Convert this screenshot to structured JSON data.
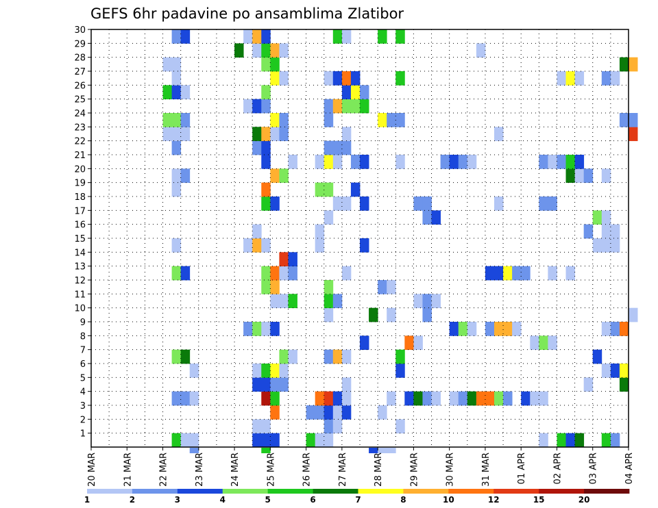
{
  "chart_data": {
    "type": "heatmap",
    "title": "GEFS 6hr padavine po ansamblima Zlatibor",
    "xlabel": "",
    "ylabel": "",
    "x_ticks": [
      "20 MAR",
      "21 MAR",
      "22 MAR",
      "23 MAR",
      "24 MAR",
      "25 MAR",
      "26 MAR",
      "27 MAR",
      "28 MAR",
      "29 MAR",
      "30 MAR",
      "31 MAR",
      "01 APR",
      "02 APR",
      "03 APR",
      "04 APR"
    ],
    "y_ticks": [
      "1",
      "2",
      "3",
      "4",
      "5",
      "6",
      "7",
      "8",
      "9",
      "10",
      "11",
      "12",
      "13",
      "14",
      "15",
      "16",
      "17",
      "18",
      "19",
      "20",
      "21",
      "22",
      "23",
      "24",
      "25",
      "26",
      "27",
      "28",
      "29",
      "30"
    ],
    "steps_per_day": 4,
    "x_range_steps": [
      0,
      60
    ],
    "ylim": [
      0,
      30
    ],
    "grid": true,
    "color_scale": {
      "boundaries": [
        "1",
        "2",
        "3",
        "4",
        "5",
        "6",
        "7",
        "8",
        "10",
        "12",
        "15",
        "20"
      ],
      "colors": [
        "#b3c6f5",
        "#6d94eb",
        "#1a47dc",
        "#7de85a",
        "#1ec81e",
        "#0a7a0a",
        "#ffff1e",
        "#ffb030",
        "#ff7410",
        "#e23a14",
        "#b0150a",
        "#6e0a0a"
      ]
    },
    "cells": [
      [
        1,
        9,
        4
      ],
      [
        1,
        10,
        0
      ],
      [
        1,
        11,
        0
      ],
      [
        1,
        18,
        2
      ],
      [
        1,
        19,
        2
      ],
      [
        1,
        20,
        2
      ],
      [
        1,
        24,
        4
      ],
      [
        1,
        25,
        0
      ],
      [
        1,
        26,
        0
      ],
      [
        1,
        50,
        0
      ],
      [
        1,
        52,
        4
      ],
      [
        1,
        53,
        2
      ],
      [
        1,
        54,
        5
      ],
      [
        1,
        57,
        4
      ],
      [
        1,
        58,
        1
      ],
      [
        2,
        18,
        0
      ],
      [
        2,
        19,
        0
      ],
      [
        2,
        26,
        1
      ],
      [
        2,
        27,
        0
      ],
      [
        2,
        34,
        0
      ],
      [
        3,
        20,
        8
      ],
      [
        3,
        24,
        1
      ],
      [
        3,
        25,
        1
      ],
      [
        3,
        26,
        2
      ],
      [
        3,
        27,
        0
      ],
      [
        3,
        28,
        2
      ],
      [
        3,
        32,
        0
      ],
      [
        4,
        9,
        1
      ],
      [
        4,
        10,
        1
      ],
      [
        4,
        11,
        0
      ],
      [
        4,
        19,
        10
      ],
      [
        4,
        20,
        4
      ],
      [
        4,
        25,
        8
      ],
      [
        4,
        26,
        9
      ],
      [
        4,
        27,
        2
      ],
      [
        4,
        28,
        0
      ],
      [
        4,
        33,
        0
      ],
      [
        4,
        35,
        2
      ],
      [
        4,
        36,
        5
      ],
      [
        4,
        37,
        1
      ],
      [
        4,
        38,
        0
      ],
      [
        4,
        40,
        0
      ],
      [
        4,
        41,
        1
      ],
      [
        4,
        42,
        5
      ],
      [
        4,
        43,
        8
      ],
      [
        4,
        44,
        8
      ],
      [
        4,
        45,
        3
      ],
      [
        4,
        46,
        1
      ],
      [
        4,
        48,
        2
      ],
      [
        4,
        49,
        0
      ],
      [
        4,
        50,
        0
      ],
      [
        5,
        18,
        2
      ],
      [
        5,
        19,
        2
      ],
      [
        5,
        20,
        1
      ],
      [
        5,
        21,
        1
      ],
      [
        5,
        28,
        0
      ],
      [
        5,
        55,
        0
      ],
      [
        5,
        59,
        5
      ],
      [
        6,
        11,
        0
      ],
      [
        6,
        18,
        0
      ],
      [
        6,
        19,
        4
      ],
      [
        6,
        20,
        6
      ],
      [
        6,
        21,
        0
      ],
      [
        6,
        34,
        2
      ],
      [
        6,
        57,
        0
      ],
      [
        6,
        58,
        2
      ],
      [
        6,
        59,
        6
      ],
      [
        7,
        9,
        3
      ],
      [
        7,
        10,
        5
      ],
      [
        7,
        21,
        3
      ],
      [
        7,
        22,
        0
      ],
      [
        7,
        26,
        1
      ],
      [
        7,
        27,
        7
      ],
      [
        7,
        28,
        0
      ],
      [
        7,
        34,
        4
      ],
      [
        7,
        56,
        2
      ],
      [
        8,
        30,
        2
      ],
      [
        8,
        35,
        8
      ],
      [
        8,
        36,
        0
      ],
      [
        8,
        49,
        0
      ],
      [
        8,
        50,
        3
      ],
      [
        8,
        51,
        0
      ],
      [
        9,
        17,
        1
      ],
      [
        9,
        18,
        3
      ],
      [
        9,
        19,
        0
      ],
      [
        9,
        20,
        2
      ],
      [
        9,
        40,
        2
      ],
      [
        9,
        41,
        3
      ],
      [
        9,
        42,
        0
      ],
      [
        9,
        44,
        1
      ],
      [
        9,
        45,
        7
      ],
      [
        9,
        46,
        7
      ],
      [
        9,
        47,
        0
      ],
      [
        9,
        57,
        0
      ],
      [
        9,
        58,
        1
      ],
      [
        9,
        59,
        8
      ],
      [
        10,
        26,
        0
      ],
      [
        10,
        31,
        5
      ],
      [
        10,
        33,
        0
      ],
      [
        10,
        37,
        1
      ],
      [
        10,
        60,
        0
      ],
      [
        11,
        20,
        0
      ],
      [
        11,
        21,
        0
      ],
      [
        11,
        22,
        4
      ],
      [
        11,
        26,
        4
      ],
      [
        11,
        27,
        1
      ],
      [
        11,
        36,
        0
      ],
      [
        11,
        37,
        1
      ],
      [
        11,
        38,
        0
      ],
      [
        12,
        19,
        3
      ],
      [
        12,
        20,
        7
      ],
      [
        12,
        26,
        3
      ],
      [
        12,
        32,
        1
      ],
      [
        12,
        33,
        0
      ],
      [
        13,
        9,
        3
      ],
      [
        13,
        10,
        2
      ],
      [
        13,
        19,
        3
      ],
      [
        13,
        20,
        8
      ],
      [
        13,
        21,
        0
      ],
      [
        13,
        22,
        1
      ],
      [
        13,
        28,
        0
      ],
      [
        13,
        44,
        2
      ],
      [
        13,
        45,
        2
      ],
      [
        13,
        46,
        6
      ],
      [
        13,
        47,
        1
      ],
      [
        13,
        48,
        1
      ],
      [
        13,
        51,
        0
      ],
      [
        13,
        53,
        0
      ],
      [
        14,
        21,
        9
      ],
      [
        14,
        22,
        2
      ],
      [
        15,
        9,
        0
      ],
      [
        15,
        17,
        0
      ],
      [
        15,
        18,
        7
      ],
      [
        15,
        19,
        0
      ],
      [
        15,
        25,
        0
      ],
      [
        15,
        30,
        2
      ],
      [
        15,
        56,
        0
      ],
      [
        15,
        57,
        0
      ],
      [
        15,
        58,
        0
      ],
      [
        16,
        18,
        0
      ],
      [
        16,
        25,
        0
      ],
      [
        16,
        55,
        1
      ],
      [
        16,
        57,
        0
      ],
      [
        16,
        58,
        0
      ],
      [
        17,
        26,
        0
      ],
      [
        17,
        37,
        1
      ],
      [
        17,
        38,
        2
      ],
      [
        17,
        56,
        3
      ],
      [
        17,
        57,
        0
      ],
      [
        18,
        19,
        4
      ],
      [
        18,
        20,
        2
      ],
      [
        18,
        27,
        0
      ],
      [
        18,
        28,
        0
      ],
      [
        18,
        30,
        2
      ],
      [
        18,
        36,
        1
      ],
      [
        18,
        37,
        1
      ],
      [
        18,
        45,
        0
      ],
      [
        18,
        50,
        1
      ],
      [
        18,
        51,
        1
      ],
      [
        19,
        9,
        0
      ],
      [
        19,
        19,
        8
      ],
      [
        19,
        25,
        3
      ],
      [
        19,
        26,
        3
      ],
      [
        19,
        29,
        2
      ],
      [
        20,
        9,
        0
      ],
      [
        20,
        10,
        1
      ],
      [
        20,
        20,
        7
      ],
      [
        20,
        21,
        3
      ],
      [
        20,
        53,
        5
      ],
      [
        20,
        54,
        0
      ],
      [
        20,
        55,
        1
      ],
      [
        20,
        57,
        0
      ],
      [
        21,
        19,
        2
      ],
      [
        21,
        22,
        0
      ],
      [
        21,
        25,
        0
      ],
      [
        21,
        26,
        6
      ],
      [
        21,
        27,
        0
      ],
      [
        21,
        29,
        1
      ],
      [
        21,
        30,
        2
      ],
      [
        21,
        34,
        0
      ],
      [
        21,
        39,
        1
      ],
      [
        21,
        40,
        2
      ],
      [
        21,
        41,
        1
      ],
      [
        21,
        42,
        0
      ],
      [
        21,
        50,
        1
      ],
      [
        21,
        51,
        0
      ],
      [
        21,
        52,
        1
      ],
      [
        21,
        53,
        4
      ],
      [
        21,
        54,
        2
      ],
      [
        22,
        9,
        1
      ],
      [
        22,
        18,
        1
      ],
      [
        22,
        19,
        2
      ],
      [
        22,
        26,
        1
      ],
      [
        22,
        27,
        1
      ],
      [
        22,
        28,
        1
      ],
      [
        23,
        8,
        0
      ],
      [
        23,
        9,
        0
      ],
      [
        23,
        10,
        0
      ],
      [
        23,
        18,
        5
      ],
      [
        23,
        19,
        7
      ],
      [
        23,
        20,
        0
      ],
      [
        23,
        21,
        1
      ],
      [
        23,
        28,
        0
      ],
      [
        23,
        45,
        0
      ],
      [
        23,
        60,
        9
      ],
      [
        24,
        8,
        3
      ],
      [
        24,
        9,
        3
      ],
      [
        24,
        10,
        1
      ],
      [
        24,
        20,
        6
      ],
      [
        24,
        21,
        1
      ],
      [
        24,
        26,
        1
      ],
      [
        24,
        32,
        6
      ],
      [
        24,
        33,
        1
      ],
      [
        24,
        34,
        1
      ],
      [
        24,
        59,
        1
      ],
      [
        24,
        60,
        1
      ],
      [
        25,
        17,
        0
      ],
      [
        25,
        18,
        2
      ],
      [
        25,
        19,
        1
      ],
      [
        25,
        26,
        1
      ],
      [
        25,
        27,
        7
      ],
      [
        25,
        28,
        3
      ],
      [
        25,
        29,
        3
      ],
      [
        25,
        30,
        4
      ],
      [
        26,
        8,
        4
      ],
      [
        26,
        9,
        2
      ],
      [
        26,
        10,
        0
      ],
      [
        26,
        19,
        3
      ],
      [
        26,
        28,
        2
      ],
      [
        26,
        29,
        6
      ],
      [
        26,
        30,
        1
      ],
      [
        27,
        9,
        0
      ],
      [
        27,
        20,
        6
      ],
      [
        27,
        21,
        0
      ],
      [
        27,
        26,
        0
      ],
      [
        27,
        27,
        2
      ],
      [
        27,
        28,
        8
      ],
      [
        27,
        29,
        2
      ],
      [
        27,
        34,
        4
      ],
      [
        27,
        52,
        0
      ],
      [
        27,
        53,
        6
      ],
      [
        27,
        54,
        0
      ],
      [
        27,
        57,
        1
      ],
      [
        27,
        58,
        0
      ],
      [
        28,
        8,
        0
      ],
      [
        28,
        9,
        0
      ],
      [
        28,
        19,
        3
      ],
      [
        28,
        20,
        4
      ],
      [
        28,
        59,
        5
      ],
      [
        28,
        60,
        7
      ],
      [
        29,
        16,
        5
      ],
      [
        29,
        18,
        0
      ],
      [
        29,
        19,
        4
      ],
      [
        29,
        20,
        7
      ],
      [
        29,
        21,
        0
      ],
      [
        29,
        43,
        0
      ],
      [
        30,
        9,
        1
      ],
      [
        30,
        10,
        2
      ],
      [
        30,
        17,
        0
      ],
      [
        30,
        18,
        7
      ],
      [
        30,
        19,
        2
      ],
      [
        30,
        27,
        4
      ],
      [
        30,
        28,
        0
      ],
      [
        30,
        32,
        4
      ],
      [
        30,
        34,
        4
      ]
    ],
    "overflow_cells": [
      [
        11,
        1
      ],
      [
        19,
        4
      ],
      [
        31,
        2
      ],
      [
        32,
        0
      ],
      [
        33,
        0
      ]
    ]
  }
}
